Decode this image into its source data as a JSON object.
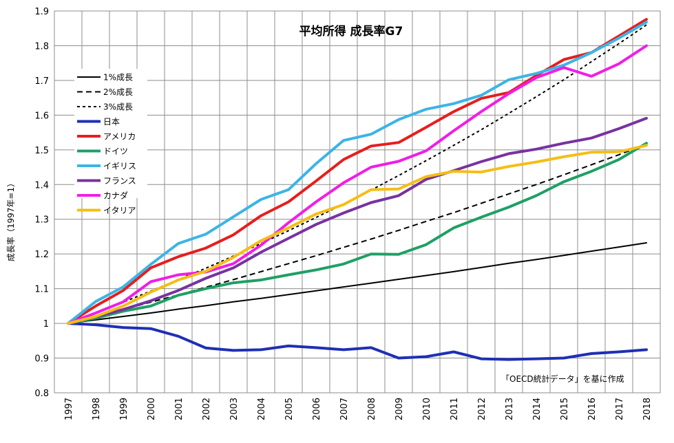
{
  "chart_data": {
    "type": "line",
    "title": "平均所得 成長率G7",
    "ylabel": "成長率（1997年=1）",
    "xlabel": "",
    "ylim": [
      0.8,
      1.9
    ],
    "yticks": [
      0.8,
      0.9,
      1,
      1.1,
      1.2,
      1.3,
      1.4,
      1.5,
      1.6,
      1.7,
      1.8,
      1.9
    ],
    "ytick_labels": [
      "0.8",
      "0.9",
      "1",
      "1.1",
      "1.2",
      "1.3",
      "1.4",
      "1.5",
      "1.6",
      "1.7",
      "1.8",
      "1.9"
    ],
    "categories": [
      "1997",
      "1998",
      "1999",
      "2000",
      "2001",
      "2002",
      "2003",
      "2004",
      "2005",
      "2006",
      "2007",
      "2008",
      "2009",
      "2010",
      "2011",
      "2012",
      "2013",
      "2014",
      "2015",
      "2016",
      "2017",
      "2018"
    ],
    "grid": true,
    "legend_position": "top-left",
    "annotation": "「OECD統計データ」を基に作成",
    "series": [
      {
        "name": "1%成長",
        "color": "#000000",
        "dash": "solid",
        "width": 2,
        "values": [
          1.0,
          1.01,
          1.02,
          1.03,
          1.041,
          1.051,
          1.062,
          1.072,
          1.083,
          1.094,
          1.105,
          1.116,
          1.127,
          1.138,
          1.149,
          1.161,
          1.173,
          1.184,
          1.196,
          1.208,
          1.22,
          1.232
        ]
      },
      {
        "name": "2%成長",
        "color": "#000000",
        "dash": "dashed",
        "width": 2,
        "values": [
          1.0,
          1.02,
          1.04,
          1.061,
          1.082,
          1.104,
          1.126,
          1.149,
          1.172,
          1.195,
          1.219,
          1.243,
          1.268,
          1.294,
          1.319,
          1.346,
          1.373,
          1.4,
          1.428,
          1.457,
          1.486,
          1.516
        ]
      },
      {
        "name": "3%成長",
        "color": "#000000",
        "dash": "dotted",
        "width": 2,
        "values": [
          1.0,
          1.03,
          1.061,
          1.093,
          1.126,
          1.159,
          1.194,
          1.23,
          1.267,
          1.305,
          1.344,
          1.384,
          1.426,
          1.469,
          1.513,
          1.558,
          1.605,
          1.653,
          1.702,
          1.754,
          1.806,
          1.86
        ]
      },
      {
        "name": "日本",
        "color": "#1f2fb4",
        "dash": "solid",
        "width": 4,
        "values": [
          1.0,
          0.996,
          0.988,
          0.985,
          0.963,
          0.929,
          0.922,
          0.924,
          0.935,
          0.93,
          0.924,
          0.93,
          0.9,
          0.904,
          0.918,
          0.898,
          0.896,
          0.898,
          0.9,
          0.913,
          0.918,
          0.924
        ]
      },
      {
        "name": "アメリカ",
        "color": "#e61e1e",
        "dash": "solid",
        "width": 4,
        "values": [
          1.0,
          1.05,
          1.095,
          1.16,
          1.192,
          1.217,
          1.255,
          1.31,
          1.35,
          1.41,
          1.472,
          1.511,
          1.521,
          1.565,
          1.61,
          1.648,
          1.665,
          1.714,
          1.76,
          1.78,
          1.828,
          1.876
        ]
      },
      {
        "name": "ドイツ",
        "color": "#1ea064",
        "dash": "solid",
        "width": 4,
        "values": [
          1.0,
          1.015,
          1.035,
          1.05,
          1.081,
          1.1,
          1.117,
          1.125,
          1.14,
          1.154,
          1.171,
          1.2,
          1.199,
          1.227,
          1.275,
          1.306,
          1.335,
          1.368,
          1.408,
          1.438,
          1.472,
          1.519
        ]
      },
      {
        "name": "イギリス",
        "color": "#3cb4e6",
        "dash": "solid",
        "width": 4,
        "values": [
          1.0,
          1.063,
          1.105,
          1.17,
          1.23,
          1.257,
          1.307,
          1.357,
          1.385,
          1.46,
          1.527,
          1.545,
          1.587,
          1.617,
          1.633,
          1.657,
          1.702,
          1.72,
          1.744,
          1.78,
          1.822,
          1.868
        ]
      },
      {
        "name": "フランス",
        "color": "#7832a0",
        "dash": "solid",
        "width": 4,
        "values": [
          1.0,
          1.019,
          1.04,
          1.065,
          1.095,
          1.13,
          1.16,
          1.205,
          1.245,
          1.285,
          1.318,
          1.348,
          1.368,
          1.415,
          1.44,
          1.466,
          1.489,
          1.502,
          1.519,
          1.534,
          1.561,
          1.591
        ]
      },
      {
        "name": "カナダ",
        "color": "#f01ee6",
        "dash": "solid",
        "width": 4,
        "values": [
          1.0,
          1.03,
          1.062,
          1.12,
          1.14,
          1.148,
          1.172,
          1.225,
          1.29,
          1.35,
          1.405,
          1.45,
          1.467,
          1.497,
          1.555,
          1.61,
          1.662,
          1.708,
          1.737,
          1.712,
          1.748,
          1.8
        ]
      },
      {
        "name": "イタリア",
        "color": "#f5be14",
        "dash": "solid",
        "width": 4,
        "values": [
          1.0,
          1.02,
          1.05,
          1.09,
          1.125,
          1.15,
          1.19,
          1.238,
          1.275,
          1.315,
          1.342,
          1.385,
          1.387,
          1.423,
          1.438,
          1.436,
          1.452,
          1.465,
          1.48,
          1.493,
          1.494,
          1.513
        ]
      }
    ]
  }
}
